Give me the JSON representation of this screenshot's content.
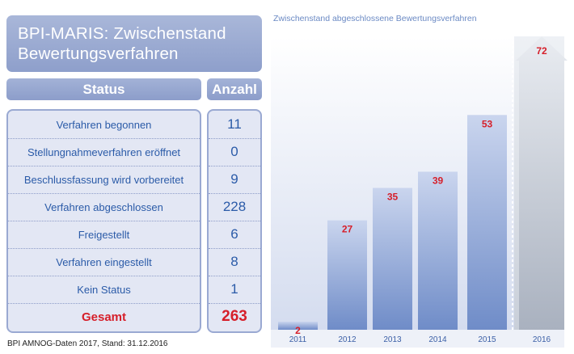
{
  "title_lines": [
    "BPI-MARIS: Zwischenstand",
    "Bewertungsverfahren"
  ],
  "table": {
    "headers": {
      "status": "Status",
      "count": "Anzahl"
    },
    "rows": [
      {
        "label": "Verfahren begonnen",
        "value": "11"
      },
      {
        "label": "Stellungnahmeverfahren eröffnet",
        "value": "0"
      },
      {
        "label": "Beschlussfassung wird vorbereitet",
        "value": "9"
      },
      {
        "label": "Verfahren abgeschlossen",
        "value": "228"
      },
      {
        "label": "Freigestellt",
        "value": "6"
      },
      {
        "label": "Verfahren eingestellt",
        "value": "8"
      },
      {
        "label": "Kein Status",
        "value": "1"
      }
    ],
    "total": {
      "label": "Gesamt",
      "value": "263"
    }
  },
  "footnote": "BPI AMNOG-Daten 2017, Stand: 31.12.2016",
  "colors": {
    "accent_blue": "#2b5ba8",
    "highlight_red": "#d61f2a",
    "bar_blue": "#7f98cd",
    "bar_grey": "#b7bfcc",
    "panel_bg": "#e3e7f4"
  },
  "chart_data": {
    "type": "bar",
    "title": "Zwischenstand abgeschlossene Bewertungsverfahren",
    "categories": [
      "2011",
      "2012",
      "2013",
      "2014",
      "2015",
      "2016"
    ],
    "values": [
      2,
      27,
      35,
      39,
      53,
      72
    ],
    "ylim": [
      0,
      72
    ],
    "grid": false,
    "last_bar_style": "grey-arrow"
  }
}
